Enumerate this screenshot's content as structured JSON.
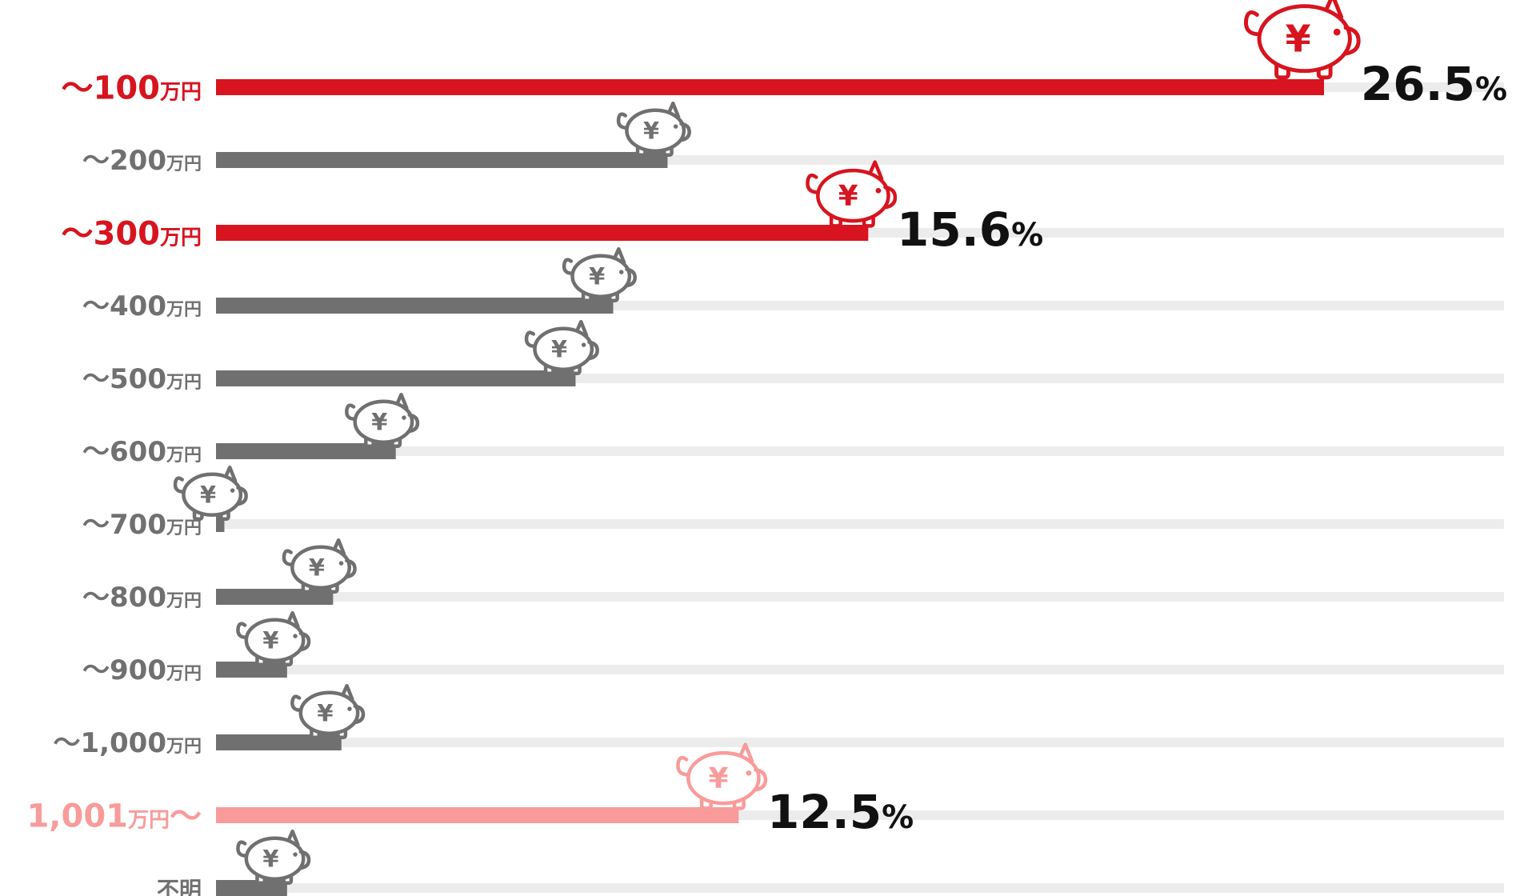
{
  "chart_data": {
    "type": "bar",
    "orientation": "horizontal",
    "title": "",
    "xlabel": "",
    "ylabel": "",
    "xlim": [
      0,
      30
    ],
    "unit": "%",
    "grid": false,
    "legend": "none",
    "categories": [
      {
        "prefix": "〜",
        "main": "100",
        "unit": "万円",
        "suffix": "",
        "highlight": "top"
      },
      {
        "prefix": "〜",
        "main": "200",
        "unit": "万円",
        "suffix": "",
        "highlight": "none"
      },
      {
        "prefix": "〜",
        "main": "300",
        "unit": "万円",
        "suffix": "",
        "highlight": "top"
      },
      {
        "prefix": "〜",
        "main": "400",
        "unit": "万円",
        "suffix": "",
        "highlight": "none"
      },
      {
        "prefix": "〜",
        "main": "500",
        "unit": "万円",
        "suffix": "",
        "highlight": "none"
      },
      {
        "prefix": "〜",
        "main": "600",
        "unit": "万円",
        "suffix": "",
        "highlight": "none"
      },
      {
        "prefix": "〜",
        "main": "700",
        "unit": "万円",
        "suffix": "",
        "highlight": "none"
      },
      {
        "prefix": "〜",
        "main": "800",
        "unit": "万円",
        "suffix": "",
        "highlight": "none"
      },
      {
        "prefix": "〜",
        "main": "900",
        "unit": "万円",
        "suffix": "",
        "highlight": "none"
      },
      {
        "prefix": "〜",
        "main": "1,000",
        "unit": "万円",
        "suffix": "",
        "highlight": "none"
      },
      {
        "prefix": "",
        "main": "1,001",
        "unit": "万円",
        "suffix": "〜",
        "highlight": "high"
      },
      {
        "prefix": "",
        "main": "",
        "unit": "不明",
        "suffix": "",
        "highlight": "none"
      }
    ],
    "values": [
      26.5,
      10.8,
      15.6,
      9.5,
      8.6,
      4.3,
      0.2,
      2.8,
      1.7,
      3.0,
      12.5,
      1.7
    ],
    "labeled_values": [
      {
        "index": 0,
        "number": "26.5",
        "unit": "%"
      },
      {
        "index": 2,
        "number": "15.6",
        "unit": "%"
      },
      {
        "index": 10,
        "number": "12.5",
        "unit": "%"
      }
    ],
    "colors": {
      "top": "#d7141f",
      "high": "#f99b9b",
      "none": "#707070",
      "track": "#ececec",
      "value_text": "#111111",
      "icon_fill": "#ffffff"
    },
    "icon": "piggy-bank-yen-icon",
    "icon_glyph": "¥"
  }
}
